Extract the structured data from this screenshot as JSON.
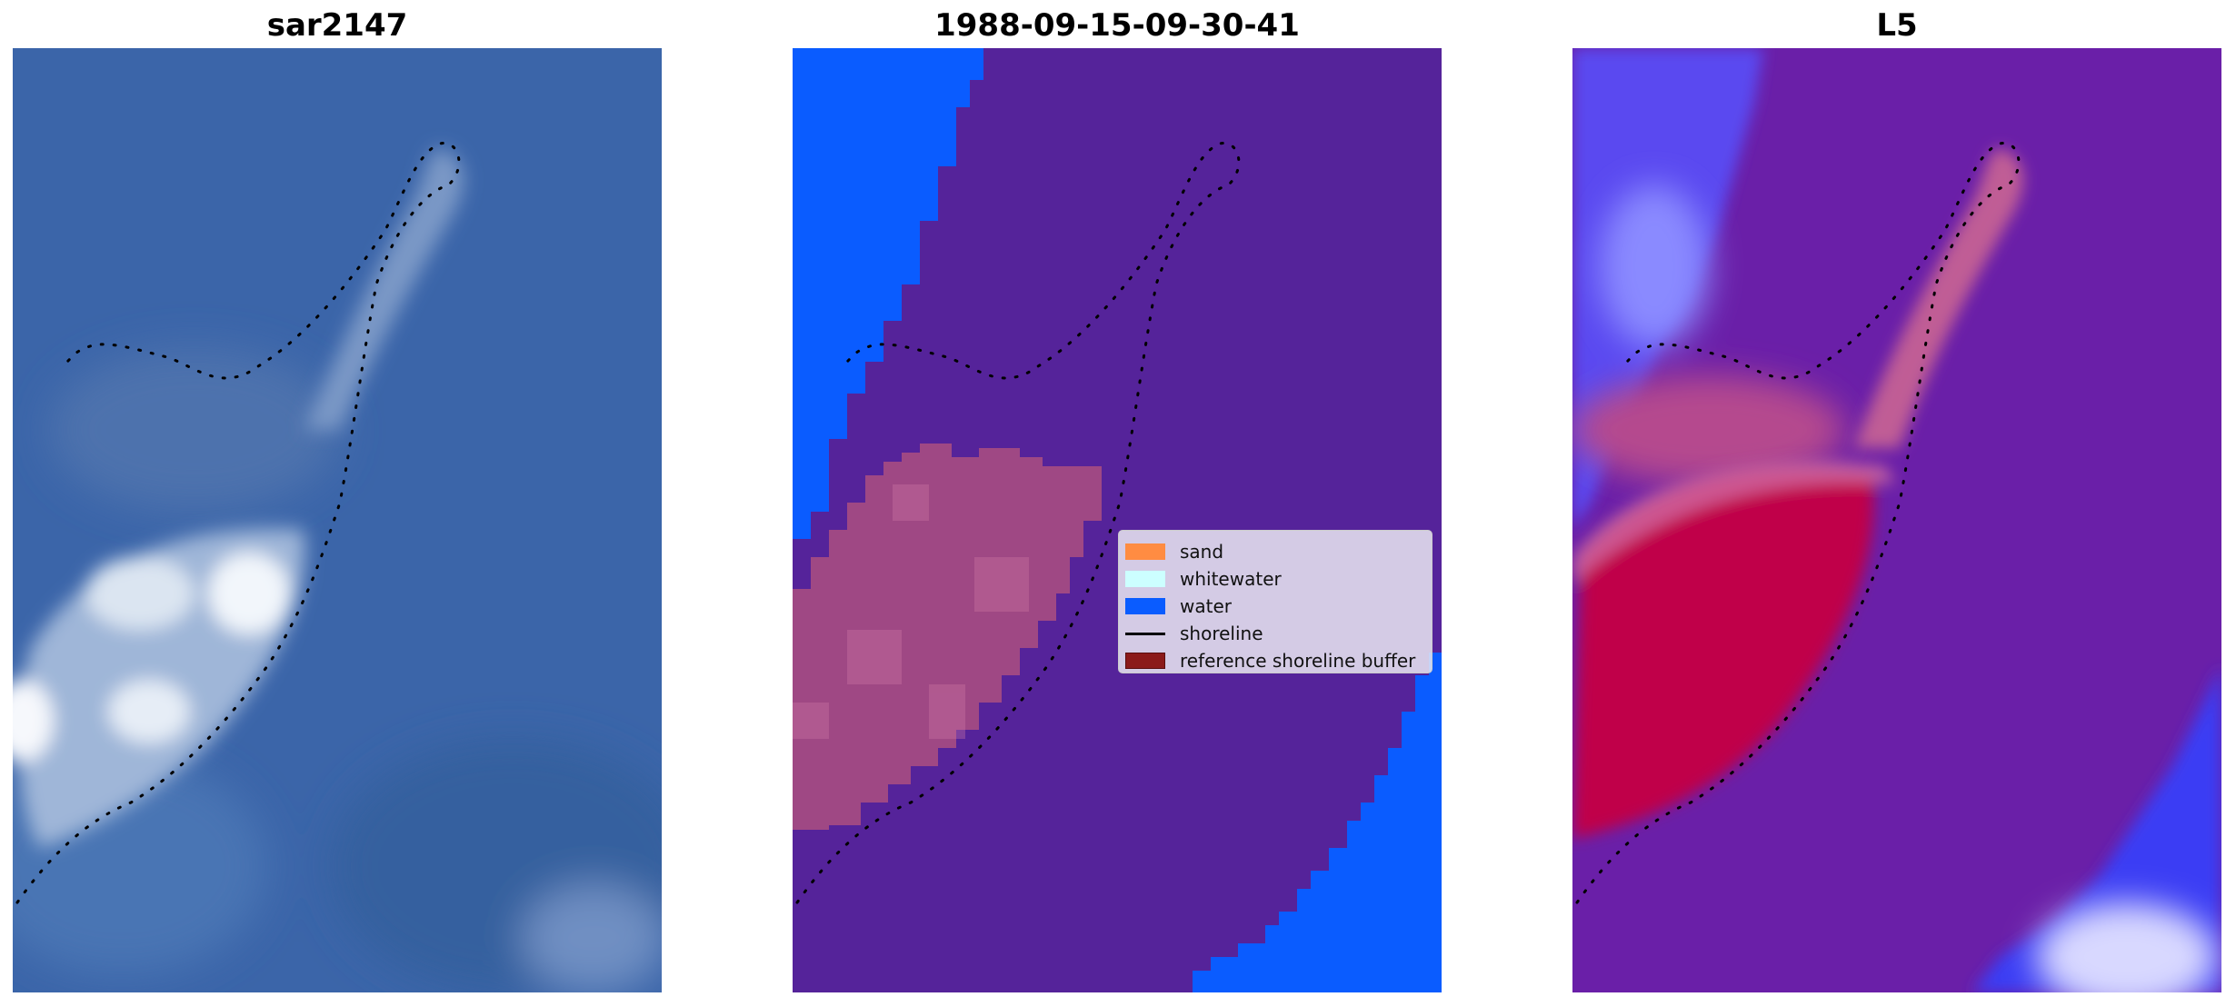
{
  "panels": [
    {
      "title": "sar2147"
    },
    {
      "title": "1988-09-15-09-30-41"
    },
    {
      "title": "L5"
    }
  ],
  "legend": {
    "items": [
      {
        "label": "sand",
        "color": "#ff8c42",
        "kind": "patch"
      },
      {
        "label": "whitewater",
        "color": "#ccffff",
        "kind": "patch"
      },
      {
        "label": "water",
        "color": "#0a5cff",
        "kind": "patch"
      },
      {
        "label": "shoreline",
        "color": "#000000",
        "kind": "line"
      },
      {
        "label": "reference shoreline buffer",
        "color": "#8b1a1a",
        "kind": "patch"
      }
    ]
  },
  "colors": {
    "sea_rgb": "#3a64a8",
    "class_other": "#55239a",
    "class_water": "#0a5cff",
    "buffer_overlay": "#c25a90",
    "l5_high": "#c4002e",
    "l5_low": "#4a40ff"
  }
}
